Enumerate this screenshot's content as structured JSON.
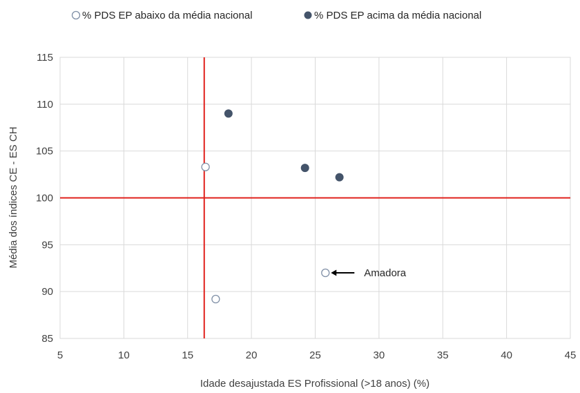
{
  "chart_data": {
    "type": "scatter",
    "xlabel": "Idade desajustada ES Profissional (>18 anos) (%)",
    "ylabel": "Média dos índices CE  - ES CH",
    "xlim": [
      5,
      45
    ],
    "ylim": [
      85,
      115
    ],
    "x_ticks": [
      5,
      10,
      15,
      20,
      25,
      30,
      35,
      40,
      45
    ],
    "y_ticks": [
      85,
      90,
      95,
      100,
      105,
      110,
      115
    ],
    "grid": true,
    "legend_position": "top",
    "series": [
      {
        "name": "% PDS EP abaixo da média nacional",
        "marker": "hollow-circle",
        "color": "#7f8fa6",
        "points": [
          {
            "x": 16.4,
            "y": 103.3
          },
          {
            "x": 17.2,
            "y": 89.2
          },
          {
            "x": 25.8,
            "y": 92.0
          }
        ]
      },
      {
        "name": "% PDS EP acima da média nacional",
        "marker": "filled-circle",
        "color": "#44546a",
        "points": [
          {
            "x": 18.2,
            "y": 109.0
          },
          {
            "x": 24.2,
            "y": 103.2
          },
          {
            "x": 26.9,
            "y": 102.2
          }
        ]
      }
    ],
    "reference_lines": [
      {
        "orientation": "vertical",
        "value": 16.3,
        "color": "#e0201b"
      },
      {
        "orientation": "horizontal",
        "value": 100,
        "color": "#e0201b"
      }
    ],
    "annotations": [
      {
        "text": "Amadora",
        "x": 25.8,
        "y": 92.0
      }
    ]
  }
}
